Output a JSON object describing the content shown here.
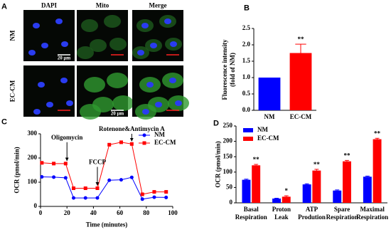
{
  "panel_letters": [
    "A",
    "B",
    "C",
    "D"
  ],
  "panel_a": {
    "columns": [
      "DAPI",
      "Mito",
      "Merge"
    ],
    "rows": [
      "NM",
      "EC-CM"
    ],
    "scale_bar": "20 μm"
  },
  "chart_data": [
    {
      "type": "bar",
      "categories": [
        "NM",
        "EC-CM"
      ],
      "values": [
        1.0,
        1.75
      ],
      "errors": [
        null,
        0.27
      ],
      "colors": [
        "#0000ff",
        "#ff0000"
      ],
      "significance": [
        null,
        "**"
      ],
      "y_label": "Fluorescence intensity\n(fold of NM)",
      "ylim": [
        0,
        2.5
      ],
      "yticks": [
        {
          "value": 0,
          "label": "0.0"
        },
        0.5,
        {
          "value": 1,
          "label": "1.0"
        },
        1.5,
        {
          "value": 2,
          "label": "2.0"
        },
        2.5
      ]
    },
    {
      "type": "line",
      "x": [
        1,
        10,
        19,
        25,
        34,
        43,
        52,
        61,
        69,
        77,
        86,
        95
      ],
      "series": [
        {
          "name": "NM",
          "color": "#0000ff",
          "marker": "circle",
          "values": [
            122,
            121,
            118,
            35,
            35,
            35,
            108,
            110,
            120,
            30,
            38,
            37
          ]
        },
        {
          "name": "EC-CM",
          "color": "#ff0000",
          "marker": "square",
          "values": [
            180,
            177,
            177,
            75,
            75,
            75,
            255,
            265,
            258,
            50,
            60,
            60
          ]
        }
      ],
      "xlim": [
        0,
        100
      ],
      "xticks": [
        0,
        20,
        40,
        60,
        80,
        100
      ],
      "ylim": [
        0,
        300
      ],
      "yticks": [
        0,
        100,
        200,
        300
      ],
      "x_label": "Time (minutes)",
      "y_label": "OCR (pmol/min)",
      "legend": "upper right",
      "annotations": [
        {
          "text": "Oligomycin",
          "x": 20
        },
        {
          "text": "FCCP",
          "x": 43
        },
        {
          "text": "Rotenone&Antimycin A",
          "x": 69
        }
      ]
    },
    {
      "type": "bar",
      "categories": [
        "Basal\nRespiration",
        "Proton\nLeak",
        "ATP\nProdution",
        "Spare\nRespiration",
        "Maximal\nRespiration"
      ],
      "series": [
        {
          "name": "NM",
          "color": "#0000ff",
          "values": [
            75,
            14,
            60,
            40,
            85
          ],
          "errors": [
            2,
            1,
            2,
            2,
            2
          ]
        },
        {
          "name": "EC-CM",
          "color": "#ff0000",
          "values": [
            122,
            20,
            105,
            135,
            207
          ],
          "errors": [
            3,
            3,
            4,
            3,
            3
          ],
          "significance": [
            "**",
            "*",
            "**",
            "**",
            "**"
          ]
        }
      ],
      "ylim": [
        0,
        250
      ],
      "yticks": [
        0,
        50,
        100,
        150,
        200,
        250
      ],
      "y_label": "OCR (pmol/min)",
      "legend": "upper left"
    }
  ]
}
